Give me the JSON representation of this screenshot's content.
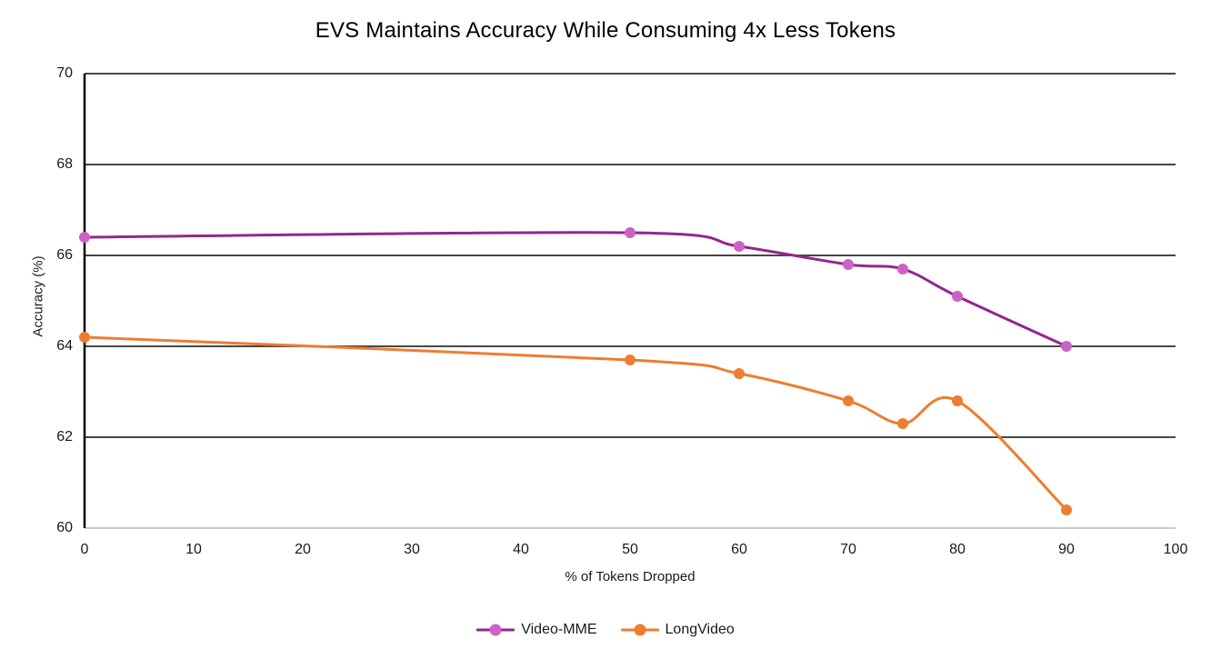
{
  "title": "EVS Maintains Accuracy While Consuming 4x Less Tokens",
  "colors": {
    "gridline": "#474747",
    "left_spine": "#000000",
    "top_spine": "#474747",
    "bottom_spine": "#c9c9c9",
    "video_mme_line": "#92278F",
    "video_mme_marker": "#CC62C6",
    "longvideo_line": "#ED7D31",
    "longvideo_marker": "#ED7D31"
  },
  "chart_data": {
    "type": "line",
    "title": "EVS Maintains Accuracy While Consuming 4x Less Tokens",
    "xlabel": "% of Tokens Dropped",
    "ylabel": "Accuracy (%)",
    "xlim": [
      0,
      100
    ],
    "ylim": [
      60,
      70
    ],
    "x_ticks": [
      0,
      10,
      20,
      30,
      40,
      50,
      60,
      70,
      80,
      90,
      100
    ],
    "y_ticks": [
      60,
      62,
      64,
      66,
      68,
      70
    ],
    "grid_y": [
      62,
      64,
      66,
      68
    ],
    "grid": "horizontal only",
    "smooth_lines": true,
    "legend_position": "bottom-center",
    "series": [
      {
        "name": "Video-MME",
        "line_color": "#92278F",
        "marker_color": "#CC62C6",
        "x": [
          0,
          50,
          60,
          70,
          75,
          80,
          90
        ],
        "y": [
          66.4,
          66.5,
          66.2,
          65.8,
          65.7,
          65.1,
          64.0
        ]
      },
      {
        "name": "LongVideo",
        "line_color": "#ED7D31",
        "marker_color": "#ED7D31",
        "x": [
          0,
          50,
          60,
          70,
          75,
          80,
          90
        ],
        "y": [
          64.2,
          63.7,
          63.4,
          62.8,
          62.3,
          62.8,
          60.4
        ]
      }
    ]
  }
}
